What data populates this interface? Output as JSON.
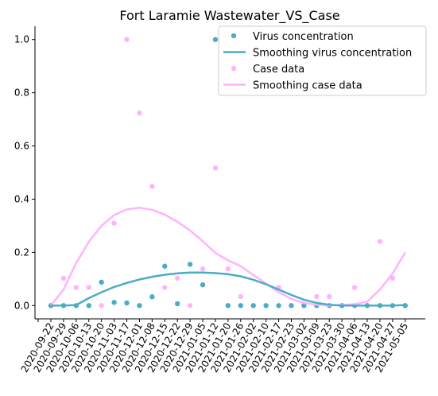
{
  "chart_data": {
    "type": "scatter",
    "title": "Fort Laramie Wastewater_VS_Case",
    "xlabel": "",
    "ylabel": "",
    "x_tick_labels": [
      "2020-09-22",
      "2020-09-29",
      "2020-10-06",
      "2020-10-13",
      "2020-10-20",
      "2020-11-03",
      "2020-11-17",
      "2020-12-01",
      "2020-12-08",
      "2020-12-15",
      "2020-12-22",
      "2020-12-29",
      "2021-01-05",
      "2021-01-12",
      "2021-01-20",
      "2021-01-26",
      "2021-02-02",
      "2021-02-10",
      "2021-02-17",
      "2021-02-23",
      "2021-03-02",
      "2021-03-09",
      "2021-03-23",
      "2021-03-30",
      "2021-04-06",
      "2021-04-13",
      "2021-04-20",
      "2021-04-27",
      "2021-05-05"
    ],
    "y_ticks": [
      "0.0",
      "0.2",
      "0.4",
      "0.6",
      "0.8",
      "1.0"
    ],
    "ylim": [
      -0.05,
      1.05
    ],
    "grid": false,
    "legend_position": "top-right",
    "series": [
      {
        "name": "Virus concentration",
        "kind": "scatter",
        "color": "#4bacc6",
        "x": [
          "2020-09-22",
          "2020-09-29",
          "2020-10-06",
          "2020-10-13",
          "2020-10-20",
          "2020-11-03",
          "2020-11-17",
          "2020-12-01",
          "2020-12-08",
          "2020-12-15",
          "2020-12-22",
          "2020-12-29",
          "2021-01-05",
          "2021-01-12",
          "2021-01-20",
          "2021-01-26",
          "2021-02-02",
          "2021-02-10",
          "2021-02-17",
          "2021-02-23",
          "2021-03-02",
          "2021-03-09",
          "2021-03-23",
          "2021-03-30",
          "2021-04-06",
          "2021-04-13",
          "2021-04-20",
          "2021-04-27",
          "2021-05-05"
        ],
        "values": [
          0.0,
          0.0,
          0.0,
          0.0,
          0.088,
          0.012,
          0.01,
          0.0,
          0.033,
          0.148,
          0.007,
          0.155,
          0.078,
          1.0,
          0.0,
          0.0,
          0.0,
          0.0,
          0.0,
          0.0,
          0.0,
          0.0,
          0.0,
          0.0,
          0.0,
          0.0,
          0.0,
          0.0,
          0.0
        ]
      },
      {
        "name": "Smoothing virus concentration",
        "kind": "line",
        "color": "#4bacc6",
        "x": [
          "2020-09-22",
          "2020-09-29",
          "2020-10-06",
          "2020-10-13",
          "2020-10-20",
          "2020-11-03",
          "2020-11-17",
          "2020-12-01",
          "2020-12-08",
          "2020-12-15",
          "2020-12-22",
          "2020-12-29",
          "2021-01-05",
          "2021-01-12",
          "2021-01-20",
          "2021-01-26",
          "2021-02-02",
          "2021-02-10",
          "2021-02-17",
          "2021-02-23",
          "2021-03-02",
          "2021-03-09",
          "2021-03-23",
          "2021-03-30",
          "2021-04-06",
          "2021-04-13",
          "2021-04-20",
          "2021-04-27",
          "2021-05-05"
        ],
        "values": [
          0.0,
          0.0,
          0.002,
          0.028,
          0.05,
          0.07,
          0.085,
          0.098,
          0.108,
          0.116,
          0.121,
          0.124,
          0.124,
          0.122,
          0.118,
          0.11,
          0.097,
          0.08,
          0.06,
          0.04,
          0.022,
          0.01,
          0.003,
          0.0,
          0.0,
          0.0,
          0.0,
          0.0,
          0.002
        ]
      },
      {
        "name": "Case data",
        "kind": "scatter",
        "color": "#ffb3ff",
        "x": [
          "2020-09-22",
          "2020-09-29",
          "2020-10-06",
          "2020-10-13",
          "2020-10-20",
          "2020-11-03",
          "2020-11-17",
          "2020-12-01",
          "2020-12-08",
          "2020-12-15",
          "2020-12-22",
          "2020-12-29",
          "2021-01-05",
          "2021-01-12",
          "2021-01-20",
          "2021-01-26",
          "2021-02-02",
          "2021-02-10",
          "2021-02-17",
          "2021-02-23",
          "2021-03-02",
          "2021-03-09",
          "2021-03-23",
          "2021-03-30",
          "2021-04-06",
          "2021-04-13",
          "2021-04-20",
          "2021-04-27",
          "2021-05-05"
        ],
        "values": [
          0.0,
          0.103,
          0.068,
          0.068,
          0.0,
          0.31,
          1.0,
          0.724,
          0.448,
          0.068,
          0.103,
          0.0,
          0.138,
          0.517,
          0.138,
          0.034,
          0.0,
          0.0,
          0.068,
          0.0,
          0.0,
          0.034,
          0.034,
          0.0,
          0.068,
          0.0,
          0.241,
          0.103,
          0.0
        ]
      },
      {
        "name": "Smoothing case data",
        "kind": "line",
        "color": "#ffb3ff",
        "x": [
          "2020-09-22",
          "2020-09-29",
          "2020-10-06",
          "2020-10-13",
          "2020-10-20",
          "2020-11-03",
          "2020-11-17",
          "2020-12-01",
          "2020-12-08",
          "2020-12-15",
          "2020-12-22",
          "2020-12-29",
          "2021-01-05",
          "2021-01-12",
          "2021-01-20",
          "2021-01-26",
          "2021-02-02",
          "2021-02-10",
          "2021-02-17",
          "2021-02-23",
          "2021-03-02",
          "2021-03-09",
          "2021-03-23",
          "2021-03-30",
          "2021-04-06",
          "2021-04-13",
          "2021-04-20",
          "2021-04-27",
          "2021-05-05"
        ],
        "values": [
          0.0,
          0.06,
          0.16,
          0.24,
          0.3,
          0.34,
          0.362,
          0.368,
          0.36,
          0.342,
          0.315,
          0.282,
          0.242,
          0.198,
          0.17,
          0.148,
          0.115,
          0.083,
          0.05,
          0.025,
          0.01,
          0.003,
          0.0,
          0.002,
          0.005,
          0.015,
          0.06,
          0.12,
          0.2
        ]
      }
    ]
  }
}
